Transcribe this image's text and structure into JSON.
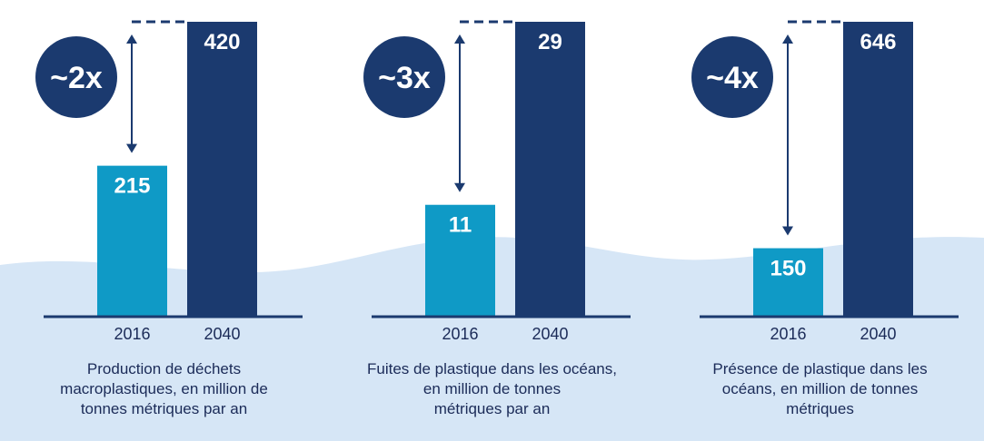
{
  "colors": {
    "bar_2016": "#0f9ac6",
    "bar_2040": "#1b3a6f",
    "circle": "#1b3a6f",
    "axis": "#1b3a6f",
    "wave": "#d6e6f6",
    "caption_text": "#1b2b58",
    "value_text": "#ffffff"
  },
  "chart_data": [
    {
      "type": "bar",
      "categories": [
        "2016",
        "2040"
      ],
      "values": [
        215,
        420
      ],
      "ratio_label": "~2x",
      "caption_lines": [
        "Production de déchets",
        "macroplastiques, en million de",
        "tonnes métriques par an"
      ]
    },
    {
      "type": "bar",
      "categories": [
        "2016",
        "2040"
      ],
      "values": [
        11,
        29
      ],
      "ratio_label": "~3x",
      "caption_lines": [
        "Fuites de plastique dans les océans,",
        "en million de tonnes",
        "métriques par an"
      ]
    },
    {
      "type": "bar",
      "categories": [
        "2016",
        "2040"
      ],
      "values": [
        150,
        646
      ],
      "ratio_label": "~4x",
      "caption_lines": [
        "Présence de plastique dans les",
        "océans, en million de tonnes",
        "métriques"
      ]
    }
  ]
}
